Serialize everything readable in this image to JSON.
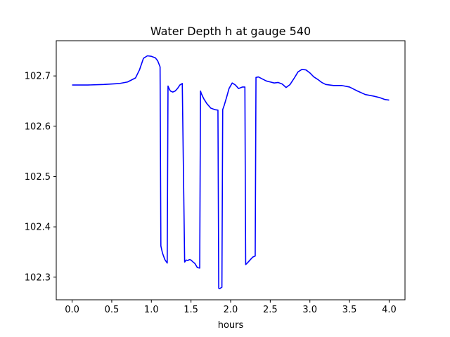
{
  "chart_data": {
    "type": "line",
    "title": "Water Depth h at gauge 540",
    "xlabel": "hours",
    "ylabel": "",
    "xlim": [
      -0.2,
      4.2
    ],
    "ylim": [
      102.255,
      102.77
    ],
    "xticks": [
      0.0,
      0.5,
      1.0,
      1.5,
      2.0,
      2.5,
      3.0,
      3.5,
      4.0
    ],
    "xtick_labels": [
      "0.0",
      "0.5",
      "1.0",
      "1.5",
      "2.0",
      "2.5",
      "3.0",
      "3.5",
      "4.0"
    ],
    "yticks": [
      102.3,
      102.4,
      102.5,
      102.6,
      102.7
    ],
    "ytick_labels": [
      "102.3",
      "102.4",
      "102.5",
      "102.6",
      "102.7"
    ],
    "grid": false,
    "series": [
      {
        "color": "#0000ff",
        "x": [
          0.0,
          0.2,
          0.4,
          0.6,
          0.7,
          0.8,
          0.85,
          0.9,
          0.95,
          1.0,
          1.05,
          1.08,
          1.11,
          1.12,
          1.14,
          1.17,
          1.2,
          1.21,
          1.22,
          1.24,
          1.27,
          1.3,
          1.33,
          1.36,
          1.39,
          1.42,
          1.43,
          1.44,
          1.46,
          1.48,
          1.5,
          1.52,
          1.55,
          1.58,
          1.61,
          1.62,
          1.63,
          1.66,
          1.7,
          1.75,
          1.8,
          1.84,
          1.85,
          1.86,
          1.87,
          1.89,
          1.9,
          1.92,
          1.95,
          1.98,
          2.02,
          2.06,
          2.1,
          2.15,
          2.18,
          2.19,
          2.21,
          2.25,
          2.28,
          2.31,
          2.32,
          2.35,
          2.4,
          2.45,
          2.5,
          2.55,
          2.6,
          2.65,
          2.7,
          2.75,
          2.8,
          2.85,
          2.9,
          2.95,
          3.0,
          3.05,
          3.1,
          3.15,
          3.2,
          3.3,
          3.4,
          3.5,
          3.6,
          3.7,
          3.8,
          3.88,
          3.95,
          4.0
        ],
        "y": [
          102.682,
          102.682,
          102.683,
          102.685,
          102.688,
          102.696,
          102.712,
          102.735,
          102.74,
          102.739,
          102.736,
          102.73,
          102.718,
          102.362,
          102.348,
          102.335,
          102.328,
          102.68,
          102.676,
          102.67,
          102.668,
          102.67,
          102.675,
          102.682,
          102.685,
          102.33,
          102.332,
          102.334,
          102.333,
          102.335,
          102.334,
          102.331,
          102.327,
          102.319,
          102.318,
          102.67,
          102.665,
          102.655,
          102.645,
          102.636,
          102.633,
          102.632,
          102.278,
          102.277,
          102.278,
          102.28,
          102.633,
          102.642,
          102.658,
          102.675,
          102.686,
          102.682,
          102.675,
          102.678,
          102.678,
          102.325,
          102.328,
          102.335,
          102.34,
          102.342,
          102.697,
          102.698,
          102.694,
          102.69,
          102.688,
          102.686,
          102.687,
          102.684,
          102.677,
          102.683,
          102.695,
          102.708,
          102.713,
          102.712,
          102.706,
          102.698,
          102.693,
          102.687,
          102.683,
          102.681,
          102.681,
          102.678,
          102.67,
          102.663,
          102.66,
          102.657,
          102.653,
          102.652
        ]
      }
    ]
  }
}
